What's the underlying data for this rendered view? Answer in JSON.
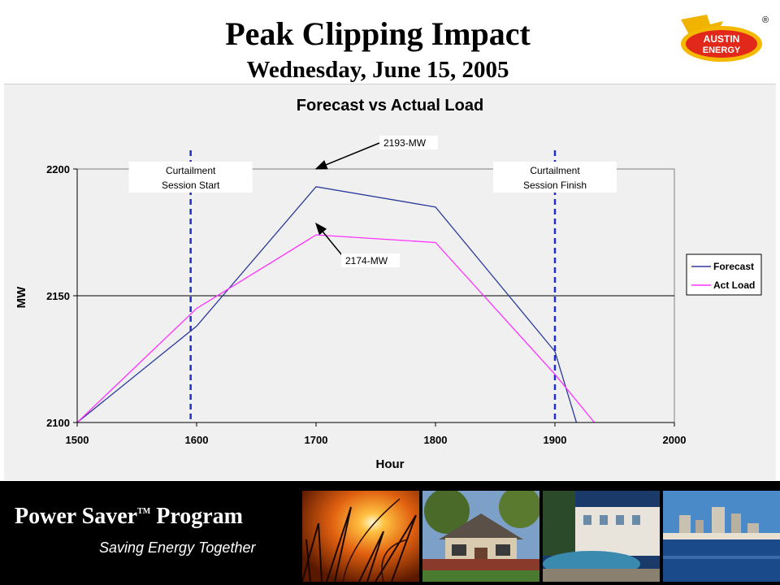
{
  "header": {
    "title": "Peak Clipping Impact",
    "subtitle": "Wednesday, June 15, 2005",
    "logo_line1": "AUSTIN",
    "logo_line2": "ENERGY",
    "logo_mark": "®"
  },
  "footer": {
    "program_name": "Power Saver",
    "tm": "TM",
    "program_suffix": " Program",
    "tagline": "Saving Energy Together",
    "photos": [
      "sunset-grass-photo",
      "house-photo",
      "townhomes-photo",
      "city-skyline-photo"
    ]
  },
  "chart_data": {
    "type": "line",
    "title": "Forecast vs Actual Load",
    "xlabel": "Hour",
    "ylabel": "MW",
    "xlim": [
      1500,
      2000
    ],
    "ylim": [
      2100,
      2200
    ],
    "x_ticks": [
      1500,
      1600,
      1700,
      1800,
      1900,
      2000
    ],
    "y_ticks": [
      2100,
      2150,
      2200
    ],
    "grid": "horizontal",
    "legend_position": "right",
    "series": [
      {
        "name": "Forecast",
        "color": "#2b3a9a",
        "x": [
          1500,
          1600,
          1700,
          1800,
          1900,
          1918
        ],
        "y": [
          2100,
          2138,
          2193,
          2185,
          2128,
          2100
        ]
      },
      {
        "name": "Act Load",
        "color": "#ff33ff",
        "x": [
          1500,
          1600,
          1700,
          1800,
          1900,
          1933
        ],
        "y": [
          2100,
          2145,
          2174,
          2171,
          2119,
          2100
        ]
      }
    ],
    "vlines": [
      {
        "x": 1595,
        "label_line1": "Curtailment",
        "label_line2": "Session Start"
      },
      {
        "x": 1900,
        "label_line1": "Curtailment",
        "label_line2": "Session Finish"
      }
    ],
    "annotations": [
      {
        "text": "2193-MW",
        "x": 1700,
        "y": 2193
      },
      {
        "text": "2174-MW",
        "x": 1700,
        "y": 2174
      }
    ]
  }
}
